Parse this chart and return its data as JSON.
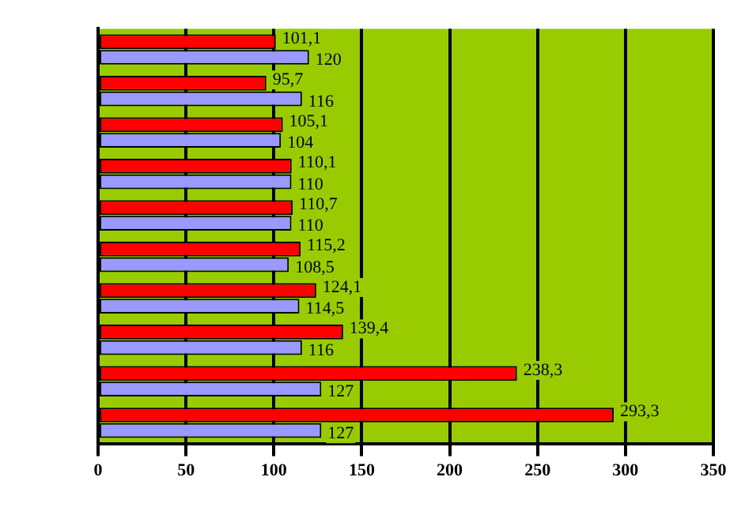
{
  "chart_data": {
    "type": "bar",
    "orientation": "horizontal",
    "categories": [
      null,
      null,
      null,
      null,
      null,
      null,
      null,
      null,
      null,
      null
    ],
    "series": [
      {
        "color": "#ff0000",
        "values": [
          101.1,
          95.7,
          105.1,
          110.1,
          110.7,
          115.2,
          124.1,
          139.4,
          238.3,
          293.3
        ],
        "value_labels": [
          "101,1",
          "95,7",
          "105,1",
          "110,1",
          "110,7",
          "115,2",
          "124,1",
          "139,4",
          "238,3",
          "293,3"
        ]
      },
      {
        "color": "#9999ff",
        "values": [
          120,
          116,
          104,
          110,
          110,
          108.5,
          114.5,
          116,
          127,
          127
        ],
        "value_labels": [
          "120",
          "116",
          "104",
          "110",
          "110",
          "108,5",
          "114,5",
          "116",
          "127",
          "127"
        ]
      }
    ],
    "xlim": [
      0,
      350
    ],
    "xticks": [
      0,
      50,
      100,
      150,
      200,
      250,
      300,
      350
    ],
    "grid": "x",
    "legend": false
  }
}
